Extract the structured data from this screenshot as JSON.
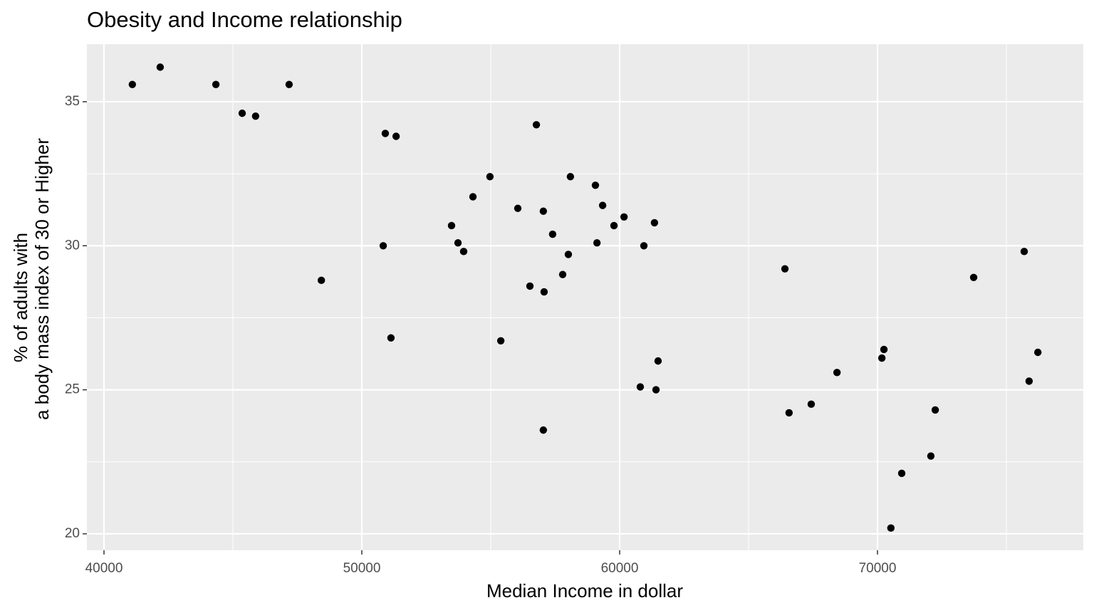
{
  "chart_data": {
    "type": "scatter",
    "title": "Obesity and Income relationship",
    "xlabel": "Median Income in dollar",
    "ylabel": [
      "% of adults with",
      "a body mass index of 30 or Higher"
    ],
    "xlim": [
      39337,
      77983
    ],
    "ylim": [
      19.43,
      37.0
    ],
    "xticks": [
      40000,
      50000,
      60000,
      70000
    ],
    "yticks": [
      20,
      25,
      30,
      35
    ],
    "grid": true,
    "color": "#000000",
    "series": [
      {
        "x": [
          41100,
          42180,
          44340,
          45360,
          45880,
          47180,
          48430,
          50910,
          51330,
          50830,
          51130,
          53480,
          53730,
          53950,
          54310,
          54970,
          55390,
          56050,
          56520,
          56770,
          57040,
          57070,
          57040,
          57400,
          57790,
          58010,
          58090,
          59060,
          59120,
          59340,
          59780,
          60170,
          60800,
          60940,
          61350,
          61410,
          61490,
          66410,
          66570,
          67430,
          68430,
          70170,
          70250,
          70520,
          70940,
          72070,
          72240,
          73730,
          75690,
          75880,
          76220
        ],
        "values": [
          35.6,
          36.2,
          35.6,
          34.6,
          34.5,
          35.6,
          28.8,
          33.9,
          33.8,
          30.0,
          26.8,
          30.7,
          30.1,
          29.8,
          31.7,
          32.4,
          26.7,
          31.3,
          28.6,
          34.2,
          31.2,
          28.4,
          23.6,
          30.4,
          29.0,
          29.7,
          32.4,
          32.1,
          30.1,
          31.4,
          30.7,
          31.0,
          25.1,
          30.0,
          30.8,
          25.0,
          26.0,
          29.2,
          24.2,
          24.5,
          25.6,
          26.1,
          26.4,
          20.2,
          22.1,
          22.7,
          24.3,
          28.9,
          29.8,
          25.3,
          26.3
        ]
      }
    ]
  }
}
